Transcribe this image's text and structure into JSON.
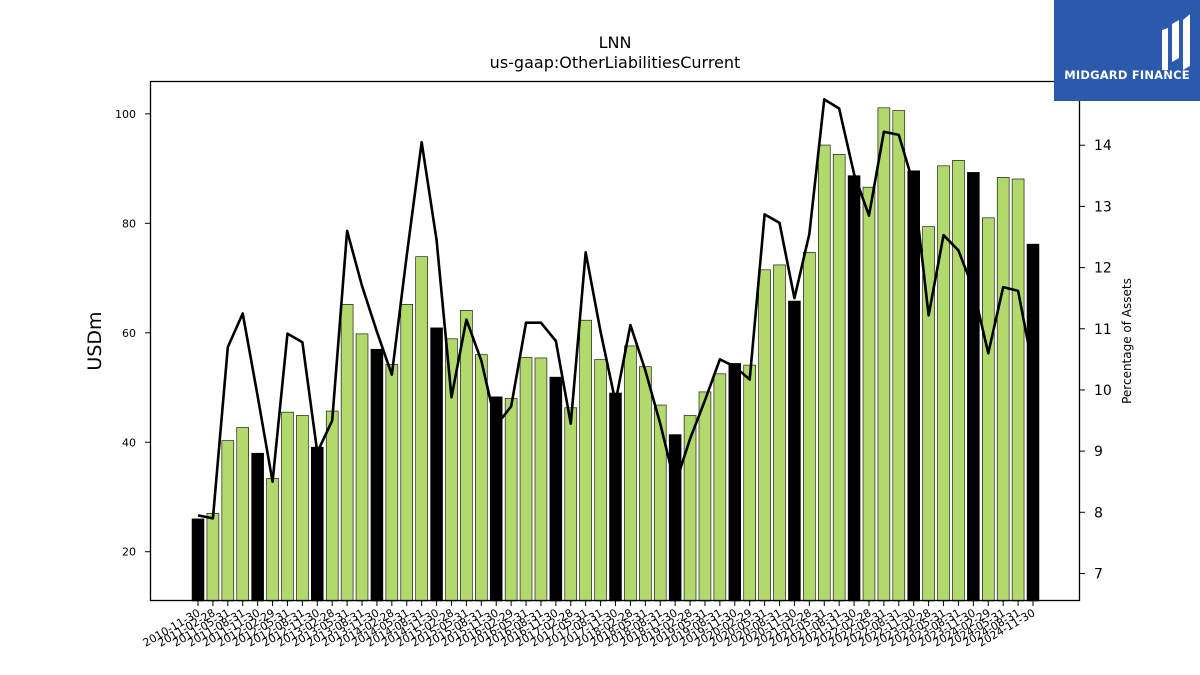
{
  "brand": {
    "name": "MIDGARD FINANCE",
    "bg_color": "#2b5aad"
  },
  "chart_data": {
    "type": "bar",
    "title": "LNN",
    "subtitle": "us-gaap:OtherLiabilitiesCurrent",
    "ylabel": "USDm",
    "y2label": "Percentage of Assets",
    "ylim": [
      11,
      106
    ],
    "y2lim": [
      6.55,
      15.05
    ],
    "yticks": [
      20,
      40,
      60,
      80,
      100
    ],
    "y2ticks": [
      7,
      8,
      9,
      10,
      11,
      12,
      13,
      14
    ],
    "colors": {
      "fiscal_year_end": "#000000",
      "quarter": "#b2d96c",
      "line": "#000000"
    },
    "x": [
      "2010-11-30",
      "2011-02-28",
      "2011-05-31",
      "2011-08-31",
      "2011-11-30",
      "2012-02-29",
      "2012-05-31",
      "2012-08-31",
      "2012-11-30",
      "2013-02-28",
      "2013-05-31",
      "2013-08-31",
      "2013-11-30",
      "2014-02-28",
      "2014-05-31",
      "2014-08-31",
      "2014-11-30",
      "2015-02-28",
      "2015-05-31",
      "2015-08-31",
      "2015-11-30",
      "2016-02-29",
      "2016-05-31",
      "2016-08-31",
      "2016-11-30",
      "2017-02-28",
      "2017-05-31",
      "2017-08-31",
      "2017-11-30",
      "2018-02-28",
      "2018-05-31",
      "2018-08-31",
      "2018-11-30",
      "2019-02-28",
      "2019-05-31",
      "2019-08-31",
      "2019-11-30",
      "2020-02-29",
      "2020-05-31",
      "2020-08-31",
      "2020-11-30",
      "2021-02-28",
      "2021-05-31",
      "2021-08-31",
      "2021-11-30",
      "2022-02-28",
      "2022-05-31",
      "2022-08-31",
      "2022-11-30",
      "2023-02-28",
      "2023-05-31",
      "2023-08-31",
      "2023-11-30",
      "2024-02-29",
      "2024-05-31",
      "2024-08-31",
      "2024-11-30"
    ],
    "series": [
      {
        "type": "bar",
        "axis": "left",
        "values": [
          26.0,
          27.0,
          40.3,
          42.7,
          38.0,
          33.4,
          45.5,
          44.9,
          39.1,
          45.7,
          65.2,
          59.8,
          57.0,
          54.2,
          65.2,
          73.9,
          60.9,
          58.9,
          64.1,
          56.0,
          48.3,
          48.0,
          55.5,
          55.4,
          51.9,
          46.3,
          62.3,
          55.1,
          49.0,
          57.6,
          53.8,
          46.8,
          41.4,
          44.9,
          49.2,
          52.5,
          54.4,
          54.1,
          71.5,
          72.4,
          65.8,
          74.7,
          94.3,
          92.6,
          88.7,
          86.6,
          101.1,
          100.6,
          89.6,
          79.4,
          90.5,
          91.5,
          89.3,
          81.0,
          88.4,
          88.1,
          76.2
        ],
        "fiscal_year_end_flags": [
          1,
          0,
          0,
          0,
          1,
          0,
          0,
          0,
          1,
          0,
          0,
          0,
          1,
          0,
          0,
          0,
          1,
          0,
          0,
          0,
          1,
          0,
          0,
          0,
          1,
          0,
          0,
          0,
          1,
          0,
          0,
          0,
          1,
          0,
          0,
          0,
          1,
          0,
          0,
          0,
          1,
          0,
          0,
          0,
          1,
          0,
          0,
          0,
          1,
          0,
          0,
          0,
          1,
          0,
          0,
          0,
          1
        ]
      },
      {
        "type": "line",
        "axis": "right",
        "values": [
          7.95,
          7.9,
          10.7,
          11.25,
          9.9,
          8.5,
          10.92,
          10.78,
          8.98,
          9.5,
          12.6,
          11.7,
          10.95,
          10.25,
          12.2,
          14.05,
          12.45,
          9.88,
          11.15,
          10.48,
          9.42,
          9.73,
          11.1,
          11.1,
          10.8,
          9.45,
          12.25,
          10.95,
          9.8,
          11.06,
          10.32,
          9.45,
          8.45,
          9.2,
          9.83,
          10.5,
          10.38,
          10.17,
          12.87,
          12.73,
          11.5,
          12.55,
          14.75,
          14.6,
          13.53,
          12.85,
          14.22,
          14.17,
          13.35,
          11.22,
          12.53,
          12.28,
          11.65,
          10.6,
          11.68,
          11.62,
          10.35
        ]
      }
    ]
  }
}
